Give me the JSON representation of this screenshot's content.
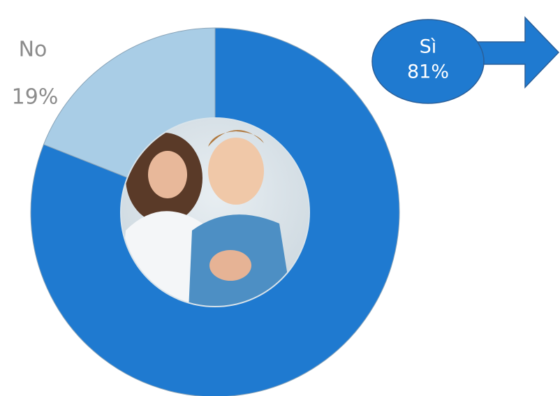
{
  "chart_data": {
    "type": "donut",
    "categories": [
      "Sì",
      "No"
    ],
    "values": [
      81,
      19
    ],
    "value_labels": [
      "81%",
      "19%"
    ],
    "colors": [
      "#1f7ad0",
      "#a9cde6"
    ]
  }
}
